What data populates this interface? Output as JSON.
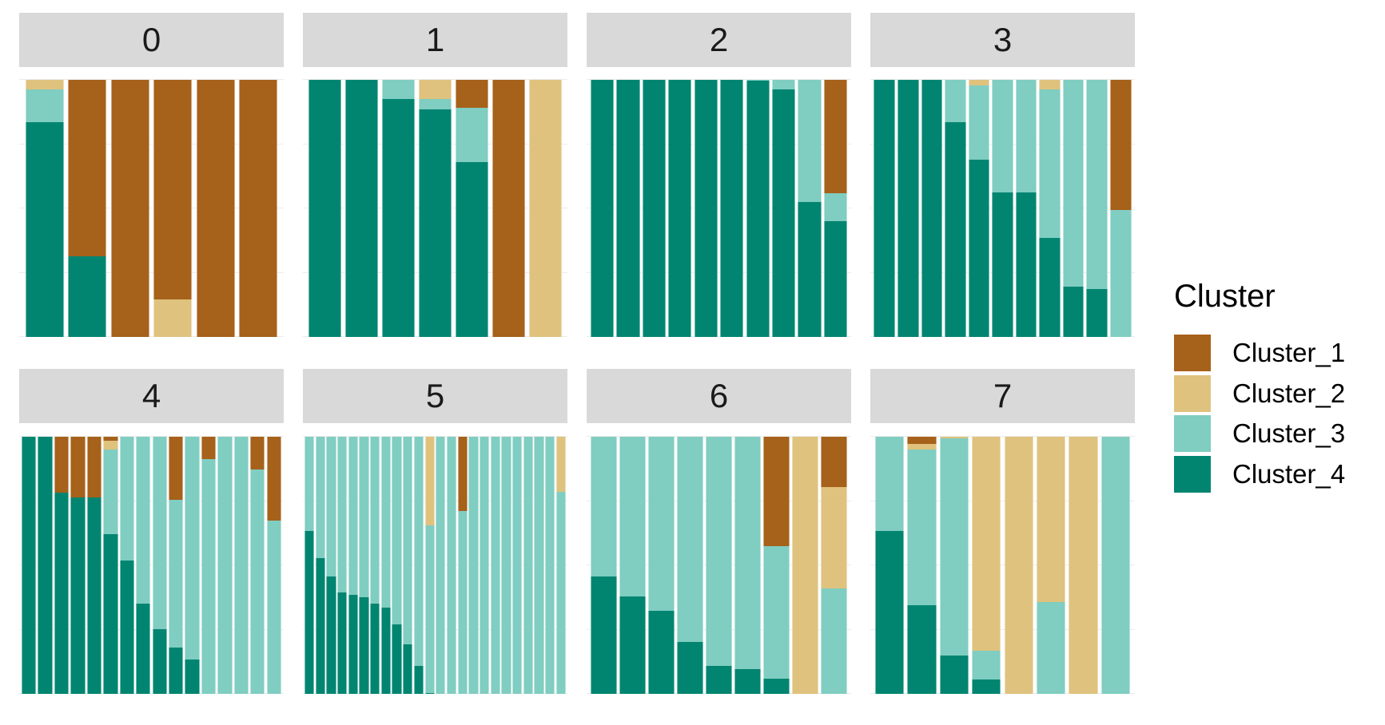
{
  "chart_data": {
    "type": "bar",
    "subtype": "stacked-proportion-faceted",
    "title": "",
    "xlabel": "",
    "ylabel": "",
    "ylim": [
      0,
      1
    ],
    "grid": true,
    "legend_position": "right",
    "legend": {
      "title": "Cluster",
      "entries": [
        {
          "name": "Cluster_1",
          "color": "#A6611A"
        },
        {
          "name": "Cluster_2",
          "color": "#DFC27D"
        },
        {
          "name": "Cluster_3",
          "color": "#80CDC1"
        },
        {
          "name": "Cluster_4",
          "color": "#018571"
        }
      ]
    },
    "series_order_top_to_bottom": [
      "Cluster_1",
      "Cluster_2",
      "Cluster_3",
      "Cluster_4"
    ],
    "facets": [
      {
        "label": "0",
        "bars": [
          {
            "Cluster_1": 0,
            "Cluster_2": 0.037,
            "Cluster_3": 0.127,
            "Cluster_4": 0.836
          },
          {
            "Cluster_1": 0.686,
            "Cluster_2": 0,
            "Cluster_3": 0,
            "Cluster_4": 0.314
          },
          {
            "Cluster_1": 1,
            "Cluster_2": 0,
            "Cluster_3": 0,
            "Cluster_4": 0
          },
          {
            "Cluster_1": 0.855,
            "Cluster_2": 0.145,
            "Cluster_3": 0,
            "Cluster_4": 0
          },
          {
            "Cluster_1": 1,
            "Cluster_2": 0,
            "Cluster_3": 0,
            "Cluster_4": 0
          },
          {
            "Cluster_1": 1,
            "Cluster_2": 0,
            "Cluster_3": 0,
            "Cluster_4": 0
          }
        ]
      },
      {
        "label": "1",
        "bars": [
          {
            "Cluster_1": 0,
            "Cluster_2": 0,
            "Cluster_3": 0,
            "Cluster_4": 1
          },
          {
            "Cluster_1": 0,
            "Cluster_2": 0,
            "Cluster_3": 0,
            "Cluster_4": 1
          },
          {
            "Cluster_1": 0,
            "Cluster_2": 0,
            "Cluster_3": 0.075,
            "Cluster_4": 0.925
          },
          {
            "Cluster_1": 0,
            "Cluster_2": 0.073,
            "Cluster_3": 0.041,
            "Cluster_4": 0.886
          },
          {
            "Cluster_1": 0.108,
            "Cluster_2": 0,
            "Cluster_3": 0.212,
            "Cluster_4": 0.68
          },
          {
            "Cluster_1": 1,
            "Cluster_2": 0,
            "Cluster_3": 0,
            "Cluster_4": 0
          },
          {
            "Cluster_1": 0,
            "Cluster_2": 1,
            "Cluster_3": 0,
            "Cluster_4": 0
          }
        ]
      },
      {
        "label": "2",
        "bars": [
          {
            "Cluster_1": 0,
            "Cluster_2": 0,
            "Cluster_3": 0,
            "Cluster_4": 1
          },
          {
            "Cluster_1": 0,
            "Cluster_2": 0,
            "Cluster_3": 0,
            "Cluster_4": 1
          },
          {
            "Cluster_1": 0,
            "Cluster_2": 0,
            "Cluster_3": 0,
            "Cluster_4": 1
          },
          {
            "Cluster_1": 0,
            "Cluster_2": 0,
            "Cluster_3": 0,
            "Cluster_4": 1
          },
          {
            "Cluster_1": 0,
            "Cluster_2": 0,
            "Cluster_3": 0,
            "Cluster_4": 1
          },
          {
            "Cluster_1": 0,
            "Cluster_2": 0,
            "Cluster_3": 0,
            "Cluster_4": 1
          },
          {
            "Cluster_1": 0,
            "Cluster_2": 0,
            "Cluster_3": 0.004,
            "Cluster_4": 0.996
          },
          {
            "Cluster_1": 0,
            "Cluster_2": 0,
            "Cluster_3": 0.036,
            "Cluster_4": 0.964
          },
          {
            "Cluster_1": 0,
            "Cluster_2": 0,
            "Cluster_3": 0.475,
            "Cluster_4": 0.525
          },
          {
            "Cluster_1": 0.442,
            "Cluster_2": 0,
            "Cluster_3": 0.108,
            "Cluster_4": 0.45
          }
        ]
      },
      {
        "label": "3",
        "bars": [
          {
            "Cluster_1": 0,
            "Cluster_2": 0,
            "Cluster_3": 0,
            "Cluster_4": 1
          },
          {
            "Cluster_1": 0,
            "Cluster_2": 0,
            "Cluster_3": 0,
            "Cluster_4": 1
          },
          {
            "Cluster_1": 0,
            "Cluster_2": 0,
            "Cluster_3": 0,
            "Cluster_4": 1
          },
          {
            "Cluster_1": 0,
            "Cluster_2": 0,
            "Cluster_3": 0.166,
            "Cluster_4": 0.834
          },
          {
            "Cluster_1": 0,
            "Cluster_2": 0.023,
            "Cluster_3": 0.288,
            "Cluster_4": 0.689
          },
          {
            "Cluster_1": 0,
            "Cluster_2": 0,
            "Cluster_3": 0.438,
            "Cluster_4": 0.562
          },
          {
            "Cluster_1": 0,
            "Cluster_2": 0,
            "Cluster_3": 0.438,
            "Cluster_4": 0.562
          },
          {
            "Cluster_1": 0,
            "Cluster_2": 0.038,
            "Cluster_3": 0.576,
            "Cluster_4": 0.386
          },
          {
            "Cluster_1": 0,
            "Cluster_2": 0,
            "Cluster_3": 0.804,
            "Cluster_4": 0.196
          },
          {
            "Cluster_1": 0,
            "Cluster_2": 0,
            "Cluster_3": 0.815,
            "Cluster_4": 0.185
          },
          {
            "Cluster_1": 0.505,
            "Cluster_2": 0,
            "Cluster_3": 0.495,
            "Cluster_4": 0
          }
        ]
      },
      {
        "label": "4",
        "bars": [
          {
            "Cluster_1": 0,
            "Cluster_2": 0,
            "Cluster_3": 0,
            "Cluster_4": 1
          },
          {
            "Cluster_1": 0,
            "Cluster_2": 0,
            "Cluster_3": 0,
            "Cluster_4": 1
          },
          {
            "Cluster_1": 0.216,
            "Cluster_2": 0,
            "Cluster_3": 0,
            "Cluster_4": 0.784
          },
          {
            "Cluster_1": 0.235,
            "Cluster_2": 0,
            "Cluster_3": 0,
            "Cluster_4": 0.765
          },
          {
            "Cluster_1": 0.235,
            "Cluster_2": 0,
            "Cluster_3": 0,
            "Cluster_4": 0.765
          },
          {
            "Cluster_1": 0.016,
            "Cluster_2": 0.034,
            "Cluster_3": 0.33,
            "Cluster_4": 0.62
          },
          {
            "Cluster_1": 0,
            "Cluster_2": 0,
            "Cluster_3": 0.482,
            "Cluster_4": 0.518
          },
          {
            "Cluster_1": 0,
            "Cluster_2": 0,
            "Cluster_3": 0.648,
            "Cluster_4": 0.352
          },
          {
            "Cluster_1": 0,
            "Cluster_2": 0,
            "Cluster_3": 0.748,
            "Cluster_4": 0.252
          },
          {
            "Cluster_1": 0.246,
            "Cluster_2": 0,
            "Cluster_3": 0.573,
            "Cluster_4": 0.181
          },
          {
            "Cluster_1": 0,
            "Cluster_2": 0,
            "Cluster_3": 0.866,
            "Cluster_4": 0.134
          },
          {
            "Cluster_1": 0.087,
            "Cluster_2": 0,
            "Cluster_3": 0.913,
            "Cluster_4": 0
          },
          {
            "Cluster_1": 0,
            "Cluster_2": 0,
            "Cluster_3": 1,
            "Cluster_4": 0
          },
          {
            "Cluster_1": 0,
            "Cluster_2": 0,
            "Cluster_3": 1,
            "Cluster_4": 0
          },
          {
            "Cluster_1": 0.128,
            "Cluster_2": 0,
            "Cluster_3": 0.872,
            "Cluster_4": 0
          },
          {
            "Cluster_1": 0.327,
            "Cluster_2": 0,
            "Cluster_3": 0.673,
            "Cluster_4": 0
          }
        ]
      },
      {
        "label": "5",
        "bars": [
          {
            "Cluster_1": 0,
            "Cluster_2": 0,
            "Cluster_3": 0.366,
            "Cluster_4": 0.634
          },
          {
            "Cluster_1": 0,
            "Cluster_2": 0,
            "Cluster_3": 0.471,
            "Cluster_4": 0.529
          },
          {
            "Cluster_1": 0,
            "Cluster_2": 0,
            "Cluster_3": 0.544,
            "Cluster_4": 0.456
          },
          {
            "Cluster_1": 0,
            "Cluster_2": 0,
            "Cluster_3": 0.607,
            "Cluster_4": 0.393
          },
          {
            "Cluster_1": 0,
            "Cluster_2": 0,
            "Cluster_3": 0.615,
            "Cluster_4": 0.385
          },
          {
            "Cluster_1": 0,
            "Cluster_2": 0,
            "Cluster_3": 0.625,
            "Cluster_4": 0.375
          },
          {
            "Cluster_1": 0,
            "Cluster_2": 0,
            "Cluster_3": 0.648,
            "Cluster_4": 0.352
          },
          {
            "Cluster_1": 0,
            "Cluster_2": 0,
            "Cluster_3": 0.665,
            "Cluster_4": 0.335
          },
          {
            "Cluster_1": 0,
            "Cluster_2": 0,
            "Cluster_3": 0.73,
            "Cluster_4": 0.27
          },
          {
            "Cluster_1": 0,
            "Cluster_2": 0,
            "Cluster_3": 0.809,
            "Cluster_4": 0.191
          },
          {
            "Cluster_1": 0,
            "Cluster_2": 0,
            "Cluster_3": 0.89,
            "Cluster_4": 0.11
          },
          {
            "Cluster_1": 0,
            "Cluster_2": 0.344,
            "Cluster_3": 0.652,
            "Cluster_4": 0.004
          },
          {
            "Cluster_1": 0,
            "Cluster_2": 0,
            "Cluster_3": 1,
            "Cluster_4": 0
          },
          {
            "Cluster_1": 0,
            "Cluster_2": 0,
            "Cluster_3": 1,
            "Cluster_4": 0
          },
          {
            "Cluster_1": 0.288,
            "Cluster_2": 0,
            "Cluster_3": 0.712,
            "Cluster_4": 0
          },
          {
            "Cluster_1": 0,
            "Cluster_2": 0,
            "Cluster_3": 1,
            "Cluster_4": 0
          },
          {
            "Cluster_1": 0,
            "Cluster_2": 0,
            "Cluster_3": 1,
            "Cluster_4": 0
          },
          {
            "Cluster_1": 0,
            "Cluster_2": 0,
            "Cluster_3": 1,
            "Cluster_4": 0
          },
          {
            "Cluster_1": 0,
            "Cluster_2": 0,
            "Cluster_3": 1,
            "Cluster_4": 0
          },
          {
            "Cluster_1": 0,
            "Cluster_2": 0,
            "Cluster_3": 1,
            "Cluster_4": 0
          },
          {
            "Cluster_1": 0,
            "Cluster_2": 0,
            "Cluster_3": 1,
            "Cluster_4": 0
          },
          {
            "Cluster_1": 0,
            "Cluster_2": 0,
            "Cluster_3": 1,
            "Cluster_4": 0
          },
          {
            "Cluster_1": 0,
            "Cluster_2": 0,
            "Cluster_3": 1,
            "Cluster_4": 0
          },
          {
            "Cluster_1": 0,
            "Cluster_2": 0.213,
            "Cluster_3": 0.787,
            "Cluster_4": 0
          }
        ]
      },
      {
        "label": "6",
        "bars": [
          {
            "Cluster_1": 0,
            "Cluster_2": 0,
            "Cluster_3": 0.545,
            "Cluster_4": 0.455
          },
          {
            "Cluster_1": 0,
            "Cluster_2": 0,
            "Cluster_3": 0.62,
            "Cluster_4": 0.38
          },
          {
            "Cluster_1": 0,
            "Cluster_2": 0,
            "Cluster_3": 0.678,
            "Cluster_4": 0.322
          },
          {
            "Cluster_1": 0,
            "Cluster_2": 0,
            "Cluster_3": 0.799,
            "Cluster_4": 0.201
          },
          {
            "Cluster_1": 0,
            "Cluster_2": 0,
            "Cluster_3": 0.891,
            "Cluster_4": 0.109
          },
          {
            "Cluster_1": 0,
            "Cluster_2": 0,
            "Cluster_3": 0.905,
            "Cluster_4": 0.095
          },
          {
            "Cluster_1": 0.427,
            "Cluster_2": 0,
            "Cluster_3": 0.515,
            "Cluster_4": 0.058
          },
          {
            "Cluster_1": 0,
            "Cluster_2": 1,
            "Cluster_3": 0,
            "Cluster_4": 0
          },
          {
            "Cluster_1": 0.195,
            "Cluster_2": 0.395,
            "Cluster_3": 0.41,
            "Cluster_4": 0
          }
        ]
      },
      {
        "label": "7",
        "bars": [
          {
            "Cluster_1": 0,
            "Cluster_2": 0,
            "Cluster_3": 0.366,
            "Cluster_4": 0.634
          },
          {
            "Cluster_1": 0.029,
            "Cluster_2": 0.021,
            "Cluster_3": 0.606,
            "Cluster_4": 0.344
          },
          {
            "Cluster_1": 0,
            "Cluster_2": 0.007,
            "Cluster_3": 0.845,
            "Cluster_4": 0.148
          },
          {
            "Cluster_1": 0,
            "Cluster_2": 0.833,
            "Cluster_3": 0.111,
            "Cluster_4": 0.056
          },
          {
            "Cluster_1": 0,
            "Cluster_2": 1,
            "Cluster_3": 0,
            "Cluster_4": 0
          },
          {
            "Cluster_1": 0,
            "Cluster_2": 0.644,
            "Cluster_3": 0.356,
            "Cluster_4": 0
          },
          {
            "Cluster_1": 0,
            "Cluster_2": 1,
            "Cluster_3": 0,
            "Cluster_4": 0
          },
          {
            "Cluster_1": 0,
            "Cluster_2": 0,
            "Cluster_3": 1,
            "Cluster_4": 0
          }
        ]
      }
    ]
  }
}
